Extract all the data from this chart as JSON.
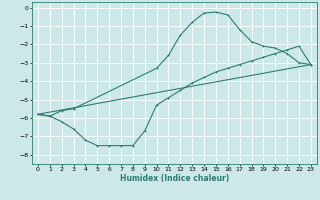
{
  "xlabel": "Humidex (Indice chaleur)",
  "bg_color": "#cce8e8",
  "grid_color": "#ffffff",
  "line_color": "#2e7d72",
  "xlim": [
    -0.5,
    23.5
  ],
  "ylim": [
    -8.5,
    0.3
  ],
  "yticks": [
    0,
    -1,
    -2,
    -3,
    -4,
    -5,
    -6,
    -7,
    -8
  ],
  "xticks": [
    0,
    1,
    2,
    3,
    4,
    5,
    6,
    7,
    8,
    9,
    10,
    11,
    12,
    13,
    14,
    15,
    16,
    17,
    18,
    19,
    20,
    21,
    22,
    23
  ],
  "line1_x": [
    0,
    1,
    2,
    3,
    10,
    11,
    12,
    13,
    14,
    15,
    16,
    17,
    18,
    19,
    20,
    21,
    22,
    23
  ],
  "line1_y": [
    -5.8,
    -5.9,
    -5.6,
    -5.5,
    -3.3,
    -2.6,
    -1.5,
    -0.8,
    -0.3,
    -0.25,
    -0.4,
    -1.2,
    -1.85,
    -2.1,
    -2.2,
    -2.5,
    -3.0,
    -3.1
  ],
  "line2_x": [
    0,
    23
  ],
  "line2_y": [
    -5.8,
    -3.1
  ],
  "line3_x": [
    0,
    1,
    2,
    3,
    4,
    5,
    6,
    7,
    8,
    9,
    10,
    11,
    12,
    13,
    14,
    15,
    16,
    17,
    18,
    19,
    20,
    21,
    22,
    23
  ],
  "line3_y": [
    -5.8,
    -5.9,
    -6.2,
    -6.6,
    -7.2,
    -7.5,
    -7.5,
    -7.5,
    -7.5,
    -6.7,
    -5.3,
    -4.9,
    -4.5,
    -4.1,
    -3.8,
    -3.5,
    -3.3,
    -3.1,
    -2.9,
    -2.7,
    -2.5,
    -2.3,
    -2.1,
    -3.1
  ]
}
